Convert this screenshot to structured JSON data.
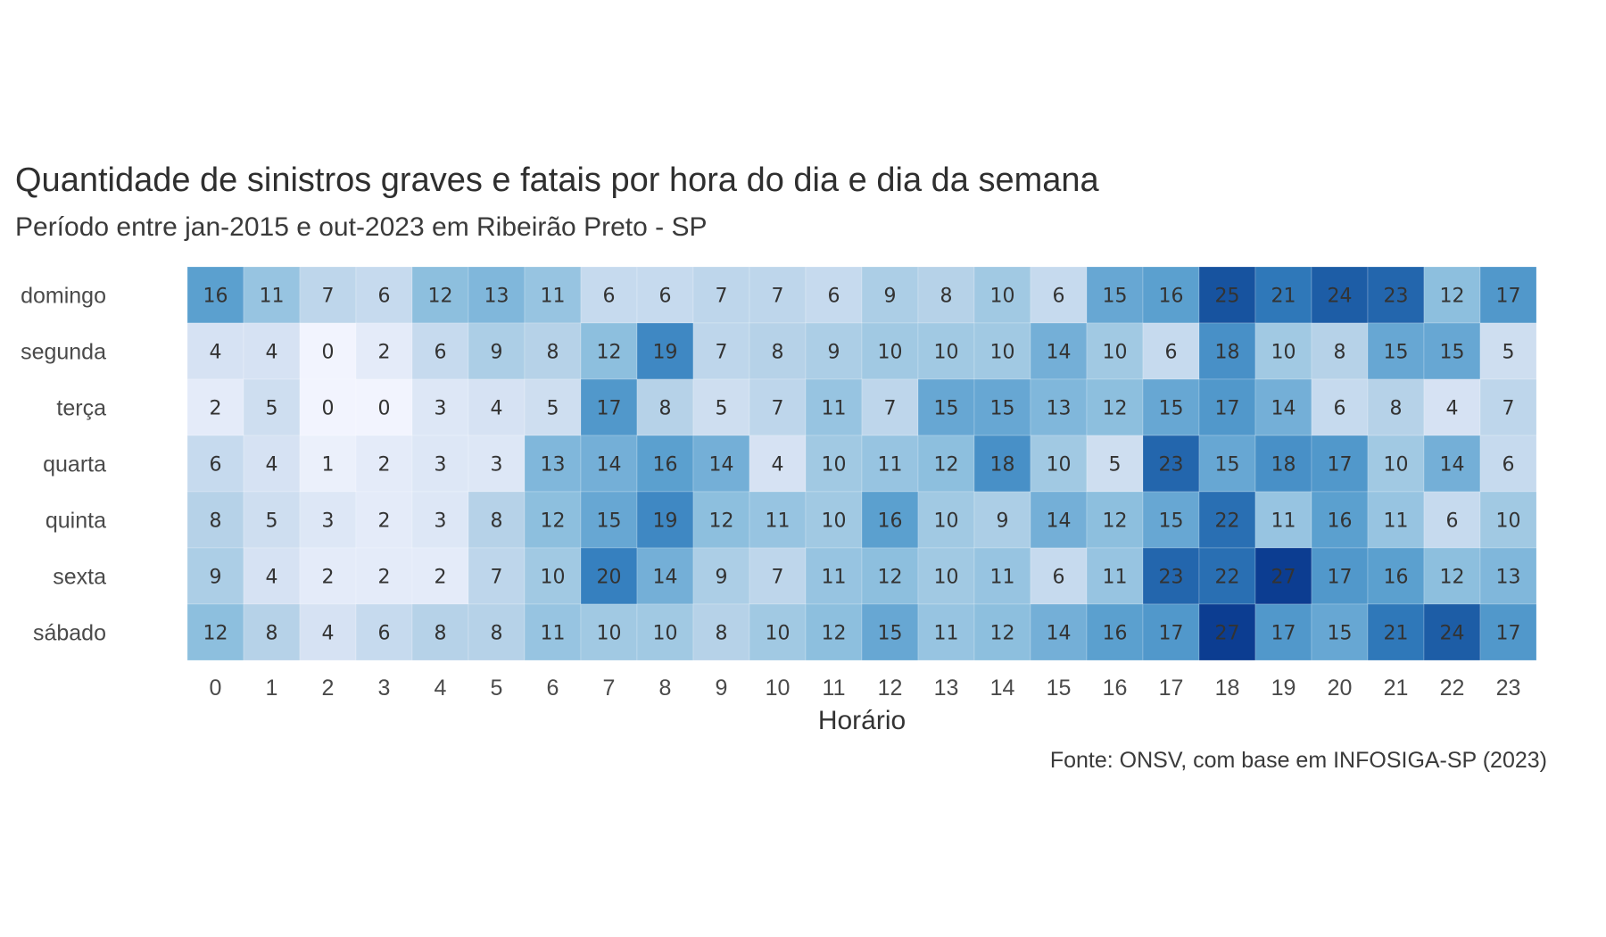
{
  "chart_data": {
    "type": "heatmap",
    "title": "Quantidade de sinistros graves e fatais por hora do dia e dia da semana",
    "subtitle": "Período entre jan-2015 e out-2023 em Ribeirão Preto - SP",
    "xlabel": "Horário",
    "ylabel": "",
    "caption": "Fonte: ONSV, com base em INFOSIGA-SP (2023)",
    "x": [
      "0",
      "1",
      "2",
      "3",
      "4",
      "5",
      "6",
      "7",
      "8",
      "9",
      "10",
      "11",
      "12",
      "13",
      "14",
      "15",
      "16",
      "17",
      "18",
      "19",
      "20",
      "21",
      "22",
      "23"
    ],
    "y": [
      "domingo",
      "segunda",
      "terça",
      "quarta",
      "quinta",
      "sexta",
      "sábado"
    ],
    "values": [
      [
        16,
        11,
        7,
        6,
        12,
        13,
        11,
        6,
        6,
        7,
        7,
        6,
        9,
        8,
        10,
        6,
        15,
        16,
        25,
        21,
        24,
        23,
        12,
        17
      ],
      [
        4,
        4,
        0,
        2,
        6,
        9,
        8,
        12,
        19,
        7,
        8,
        9,
        10,
        10,
        10,
        14,
        10,
        6,
        18,
        10,
        8,
        15,
        15,
        5
      ],
      [
        2,
        5,
        0,
        0,
        3,
        4,
        5,
        17,
        8,
        5,
        7,
        11,
        7,
        15,
        15,
        13,
        12,
        15,
        17,
        14,
        6,
        8,
        4,
        7
      ],
      [
        6,
        4,
        1,
        2,
        3,
        3,
        13,
        14,
        16,
        14,
        4,
        10,
        11,
        12,
        18,
        10,
        5,
        23,
        15,
        18,
        17,
        10,
        14,
        6
      ],
      [
        8,
        5,
        3,
        2,
        3,
        8,
        12,
        15,
        19,
        12,
        11,
        10,
        16,
        10,
        9,
        14,
        12,
        15,
        22,
        11,
        16,
        11,
        6,
        10
      ],
      [
        9,
        4,
        2,
        2,
        2,
        7,
        10,
        20,
        14,
        9,
        7,
        11,
        12,
        10,
        11,
        6,
        11,
        23,
        22,
        27,
        17,
        16,
        12,
        13
      ],
      [
        12,
        8,
        4,
        6,
        8,
        8,
        11,
        10,
        10,
        8,
        10,
        12,
        15,
        11,
        12,
        14,
        16,
        17,
        27,
        17,
        15,
        21,
        24,
        17
      ]
    ],
    "value_range": [
      0,
      27
    ],
    "color_scale": [
      "#f2f4fe",
      "#0c3d91"
    ],
    "legend": "none"
  }
}
